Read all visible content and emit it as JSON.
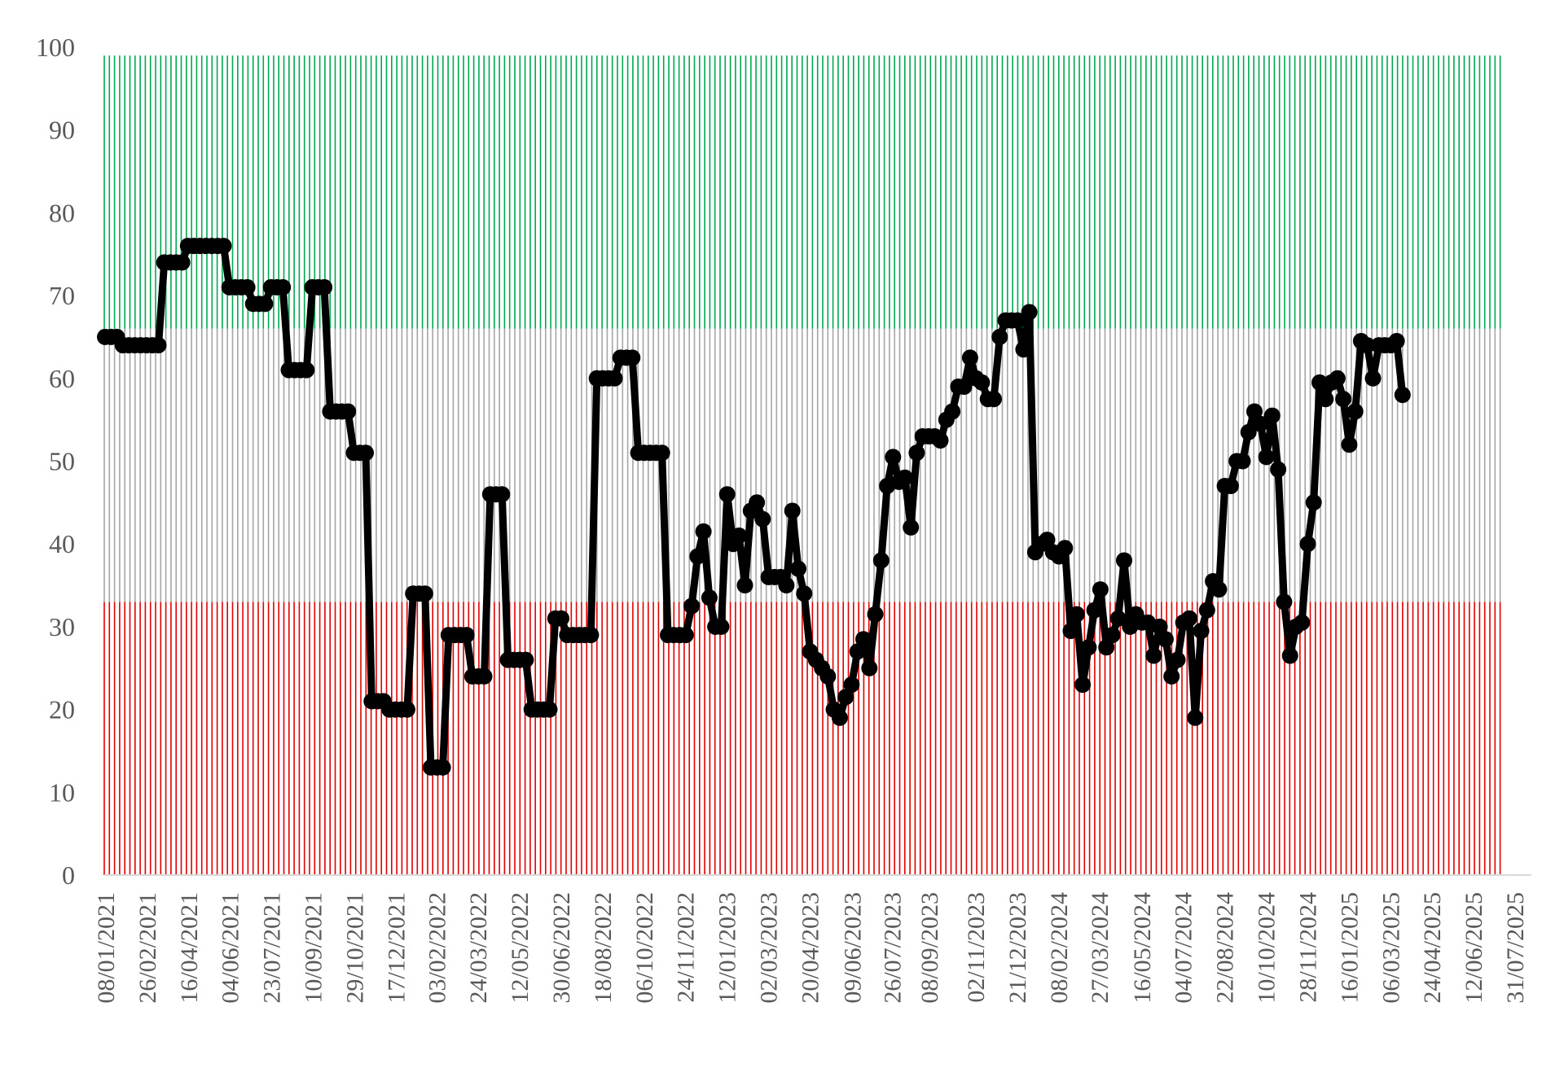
{
  "chart_data": {
    "type": "line",
    "title": "",
    "xlabel": "",
    "ylabel": "",
    "ylim": [
      0,
      100
    ],
    "y_ticks": [
      0,
      10,
      20,
      30,
      40,
      50,
      60,
      70,
      80,
      90,
      100
    ],
    "x_tick_labels": [
      "08/01/2021",
      "26/02/2021",
      "16/04/2021",
      "04/06/2021",
      "23/07/2021",
      "10/09/2021",
      "29/10/2021",
      "17/12/2021",
      "03/02/2022",
      "24/03/2022",
      "12/05/2022",
      "30/06/2022",
      "18/08/2022",
      "06/10/2022",
      "24/11/2022",
      "12/01/2023",
      "02/03/2023",
      "20/04/2023",
      "09/06/2023",
      "26/07/2023",
      "08/09/2023",
      "02/11/2023",
      "21/12/2023",
      "08/02/2024",
      "27/03/2024",
      "16/05/2024",
      "04/07/2024",
      "22/08/2024",
      "10/10/2024",
      "28/11/2024",
      "16/01/2025",
      "06/03/2025",
      "24/04/2025",
      "12/06/2025",
      "31/07/2025"
    ],
    "grid": false,
    "legend": "none",
    "background_bands": [
      {
        "from": 0,
        "to": 33,
        "color": "#e00000"
      },
      {
        "from": 33,
        "to": 66,
        "color": "#a6a6a6"
      },
      {
        "from": 66,
        "to": 99,
        "color": "#00a84f"
      }
    ],
    "series": [
      {
        "color": "#000000",
        "marker": "circle",
        "points": [
          [
            "08/01/2021",
            65
          ],
          [
            "15/01/2021",
            65
          ],
          [
            "22/01/2021",
            65
          ],
          [
            "29/01/2021",
            64
          ],
          [
            "05/02/2021",
            64
          ],
          [
            "12/02/2021",
            64
          ],
          [
            "19/02/2021",
            64
          ],
          [
            "26/02/2021",
            64
          ],
          [
            "05/03/2021",
            64
          ],
          [
            "12/03/2021",
            64
          ],
          [
            "19/03/2021",
            74
          ],
          [
            "26/03/2021",
            74
          ],
          [
            "02/04/2021",
            74
          ],
          [
            "09/04/2021",
            74
          ],
          [
            "16/04/2021",
            76
          ],
          [
            "23/04/2021",
            76
          ],
          [
            "30/04/2021",
            76
          ],
          [
            "07/05/2021",
            76
          ],
          [
            "14/05/2021",
            76
          ],
          [
            "21/05/2021",
            76
          ],
          [
            "28/05/2021",
            76
          ],
          [
            "04/06/2021",
            71
          ],
          [
            "11/06/2021",
            71
          ],
          [
            "18/06/2021",
            71
          ],
          [
            "25/06/2021",
            71
          ],
          [
            "02/07/2021",
            69
          ],
          [
            "09/07/2021",
            69
          ],
          [
            "16/07/2021",
            69
          ],
          [
            "23/07/2021",
            71
          ],
          [
            "30/07/2021",
            71
          ],
          [
            "06/08/2021",
            71
          ],
          [
            "13/08/2021",
            61
          ],
          [
            "20/08/2021",
            61
          ],
          [
            "27/08/2021",
            61
          ],
          [
            "03/09/2021",
            61
          ],
          [
            "10/09/2021",
            71
          ],
          [
            "17/09/2021",
            71
          ],
          [
            "24/09/2021",
            71
          ],
          [
            "01/10/2021",
            56
          ],
          [
            "08/10/2021",
            56
          ],
          [
            "15/10/2021",
            56
          ],
          [
            "22/10/2021",
            56
          ],
          [
            "29/10/2021",
            51
          ],
          [
            "05/11/2021",
            51
          ],
          [
            "12/11/2021",
            51
          ],
          [
            "19/11/2021",
            21
          ],
          [
            "26/11/2021",
            21
          ],
          [
            "03/12/2021",
            21
          ],
          [
            "10/12/2021",
            20
          ],
          [
            "17/12/2021",
            20
          ],
          [
            "24/12/2021",
            20
          ],
          [
            "31/12/2021",
            20
          ],
          [
            "07/01/2022",
            34
          ],
          [
            "14/01/2022",
            34
          ],
          [
            "21/01/2022",
            34
          ],
          [
            "28/01/2022",
            13
          ],
          [
            "04/02/2022",
            13
          ],
          [
            "11/02/2022",
            13
          ],
          [
            "18/02/2022",
            29
          ],
          [
            "25/02/2022",
            29
          ],
          [
            "04/03/2022",
            29
          ],
          [
            "11/03/2022",
            29
          ],
          [
            "18/03/2022",
            24
          ],
          [
            "25/03/2022",
            24
          ],
          [
            "01/04/2022",
            24
          ],
          [
            "08/04/2022",
            46
          ],
          [
            "15/04/2022",
            46
          ],
          [
            "22/04/2022",
            46
          ],
          [
            "29/04/2022",
            26
          ],
          [
            "06/05/2022",
            26
          ],
          [
            "13/05/2022",
            26
          ],
          [
            "20/05/2022",
            26
          ],
          [
            "27/05/2022",
            20
          ],
          [
            "03/06/2022",
            20
          ],
          [
            "10/06/2022",
            20
          ],
          [
            "17/06/2022",
            20
          ],
          [
            "24/06/2022",
            31
          ],
          [
            "01/07/2022",
            31
          ],
          [
            "08/07/2022",
            29
          ],
          [
            "15/07/2022",
            29
          ],
          [
            "22/07/2022",
            29
          ],
          [
            "29/07/2022",
            29
          ],
          [
            "05/08/2022",
            29
          ],
          [
            "12/08/2022",
            60
          ],
          [
            "19/08/2022",
            60
          ],
          [
            "26/08/2022",
            60
          ],
          [
            "02/09/2022",
            60
          ],
          [
            "09/09/2022",
            62.5
          ],
          [
            "16/09/2022",
            62.5
          ],
          [
            "23/09/2022",
            62.5
          ],
          [
            "30/09/2022",
            51
          ],
          [
            "07/10/2022",
            51
          ],
          [
            "14/10/2022",
            51
          ],
          [
            "21/10/2022",
            51
          ],
          [
            "28/10/2022",
            51
          ],
          [
            "04/11/2022",
            29
          ],
          [
            "11/11/2022",
            29
          ],
          [
            "18/11/2022",
            29
          ],
          [
            "25/11/2022",
            29
          ],
          [
            "02/12/2022",
            32.5
          ],
          [
            "09/12/2022",
            38.5
          ],
          [
            "16/12/2022",
            41.5
          ],
          [
            "23/12/2022",
            33.5
          ],
          [
            "30/12/2022",
            30
          ],
          [
            "06/01/2023",
            30
          ],
          [
            "13/01/2023",
            46
          ],
          [
            "20/01/2023",
            40
          ],
          [
            "27/01/2023",
            41
          ],
          [
            "03/02/2023",
            35
          ],
          [
            "10/02/2023",
            44
          ],
          [
            "17/02/2023",
            45
          ],
          [
            "24/02/2023",
            43
          ],
          [
            "03/03/2023",
            36
          ],
          [
            "10/03/2023",
            36
          ],
          [
            "17/03/2023",
            36
          ],
          [
            "24/03/2023",
            35
          ],
          [
            "31/03/2023",
            44
          ],
          [
            "07/04/2023",
            37
          ],
          [
            "14/04/2023",
            34
          ],
          [
            "21/04/2023",
            27
          ],
          [
            "28/04/2023",
            26
          ],
          [
            "05/05/2023",
            25
          ],
          [
            "12/05/2023",
            24
          ],
          [
            "19/05/2023",
            20
          ],
          [
            "26/05/2023",
            19
          ],
          [
            "02/06/2023",
            21.5
          ],
          [
            "09/06/2023",
            23
          ],
          [
            "16/06/2023",
            27
          ],
          [
            "23/06/2023",
            28.5
          ],
          [
            "30/06/2023",
            25
          ],
          [
            "07/07/2023",
            31.5
          ],
          [
            "14/07/2023",
            38
          ],
          [
            "21/07/2023",
            47
          ],
          [
            "28/07/2023",
            50.5
          ],
          [
            "04/08/2023",
            47.5
          ],
          [
            "11/08/2023",
            48
          ],
          [
            "18/08/2023",
            42
          ],
          [
            "25/08/2023",
            51
          ],
          [
            "01/09/2023",
            53
          ],
          [
            "08/09/2023",
            53
          ],
          [
            "15/09/2023",
            53
          ],
          [
            "22/09/2023",
            52.5
          ],
          [
            "29/09/2023",
            55
          ],
          [
            "06/10/2023",
            56
          ],
          [
            "13/10/2023",
            59
          ],
          [
            "20/10/2023",
            59
          ],
          [
            "27/10/2023",
            62.5
          ],
          [
            "03/11/2023",
            60
          ],
          [
            "10/11/2023",
            59.5
          ],
          [
            "17/11/2023",
            57.5
          ],
          [
            "24/11/2023",
            57.5
          ],
          [
            "01/12/2023",
            65
          ],
          [
            "08/12/2023",
            67
          ],
          [
            "15/12/2023",
            67
          ],
          [
            "22/12/2023",
            67
          ],
          [
            "29/12/2023",
            63.5
          ],
          [
            "05/01/2024",
            68
          ],
          [
            "12/01/2024",
            39
          ],
          [
            "19/01/2024",
            40
          ],
          [
            "26/01/2024",
            40.5
          ],
          [
            "02/02/2024",
            39
          ],
          [
            "09/02/2024",
            38.5
          ],
          [
            "16/02/2024",
            39.5
          ],
          [
            "23/02/2024",
            29.5
          ],
          [
            "01/03/2024",
            31.5
          ],
          [
            "08/03/2024",
            23
          ],
          [
            "15/03/2024",
            27.5
          ],
          [
            "22/03/2024",
            32
          ],
          [
            "29/03/2024",
            34.5
          ],
          [
            "05/04/2024",
            27.5
          ],
          [
            "12/04/2024",
            29
          ],
          [
            "19/04/2024",
            31
          ],
          [
            "26/04/2024",
            38
          ],
          [
            "03/05/2024",
            30
          ],
          [
            "10/05/2024",
            31.5
          ],
          [
            "17/05/2024",
            30.5
          ],
          [
            "24/05/2024",
            30.5
          ],
          [
            "31/05/2024",
            26.5
          ],
          [
            "07/06/2024",
            30
          ],
          [
            "14/06/2024",
            28.5
          ],
          [
            "21/06/2024",
            24
          ],
          [
            "28/06/2024",
            26
          ],
          [
            "05/07/2024",
            30.5
          ],
          [
            "12/07/2024",
            31
          ],
          [
            "19/07/2024",
            19
          ],
          [
            "26/07/2024",
            29.5
          ],
          [
            "02/08/2024",
            32
          ],
          [
            "09/08/2024",
            35.5
          ],
          [
            "16/08/2024",
            34.5
          ],
          [
            "23/08/2024",
            47
          ],
          [
            "30/08/2024",
            47
          ],
          [
            "06/09/2024",
            50
          ],
          [
            "13/09/2024",
            50
          ],
          [
            "20/09/2024",
            53.5
          ],
          [
            "27/09/2024",
            56
          ],
          [
            "04/10/2024",
            54.5
          ],
          [
            "11/10/2024",
            50.5
          ],
          [
            "18/10/2024",
            55.5
          ],
          [
            "25/10/2024",
            49
          ],
          [
            "01/11/2024",
            33
          ],
          [
            "08/11/2024",
            26.5
          ],
          [
            "15/11/2024",
            30
          ],
          [
            "22/11/2024",
            30.5
          ],
          [
            "29/11/2024",
            40
          ],
          [
            "06/12/2024",
            45
          ],
          [
            "13/12/2024",
            59.5
          ],
          [
            "20/12/2024",
            57.5
          ],
          [
            "27/12/2024",
            59.5
          ],
          [
            "03/01/2025",
            60
          ],
          [
            "10/01/2025",
            57.5
          ],
          [
            "17/01/2025",
            52
          ],
          [
            "24/01/2025",
            56
          ],
          [
            "31/01/2025",
            64.5
          ],
          [
            "07/02/2025",
            64
          ],
          [
            "14/02/2025",
            60
          ],
          [
            "21/02/2025",
            64
          ],
          [
            "28/02/2025",
            64
          ],
          [
            "07/03/2025",
            64
          ],
          [
            "14/03/2025",
            64.5
          ],
          [
            "21/03/2025",
            58
          ]
        ]
      }
    ]
  }
}
